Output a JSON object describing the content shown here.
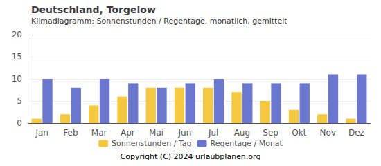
{
  "chart_data": {
    "type": "bar",
    "title": "Deutschland, Torgelow",
    "subtitle": "Klimadiagramm: Sonnenstunden / Regentage, monatlich, gemittelt",
    "categories": [
      "Jan",
      "Feb",
      "Mar",
      "Apr",
      "Mai",
      "Jun",
      "Jul",
      "Aug",
      "Sep",
      "Okt",
      "Nov",
      "Dez"
    ],
    "series": [
      {
        "name": "Sonnenstunden / Tag",
        "color": "#F5C842",
        "values": [
          1,
          2,
          4,
          6,
          8,
          8,
          8,
          7,
          5,
          3,
          2,
          1
        ]
      },
      {
        "name": "Regentage / Monat",
        "color": "#6B77CC",
        "values": [
          10,
          8,
          10,
          9,
          8,
          9,
          10,
          9,
          9,
          9,
          11,
          11
        ]
      }
    ],
    "ylim": [
      0,
      20
    ],
    "yticks": [
      0,
      5,
      10,
      15,
      20
    ],
    "grid": true,
    "legend": "bottom",
    "annotations": [
      "Copyright (C) 2024 urlaubplanen.org"
    ]
  }
}
